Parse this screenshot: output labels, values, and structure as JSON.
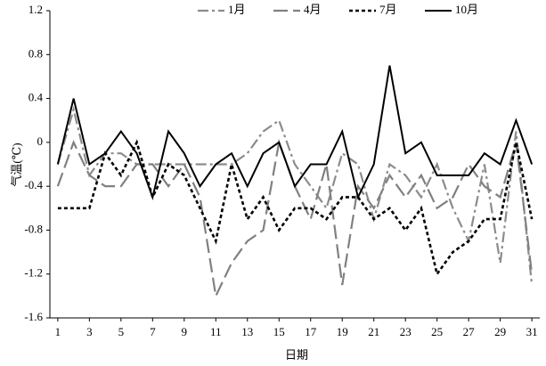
{
  "chart_data": {
    "type": "line",
    "legend": [
      "1月",
      "4月",
      "7月",
      "10月"
    ],
    "legend_position": "top",
    "x_label": "日期",
    "y_label": "气温(℃)",
    "x": [
      1,
      2,
      3,
      4,
      5,
      6,
      7,
      8,
      9,
      10,
      11,
      12,
      13,
      14,
      15,
      16,
      17,
      18,
      19,
      20,
      21,
      22,
      23,
      24,
      25,
      26,
      27,
      28,
      29,
      30,
      31
    ],
    "xlim": [
      0.5,
      31.5
    ],
    "xticks": [
      1,
      3,
      5,
      7,
      9,
      11,
      13,
      15,
      17,
      19,
      21,
      23,
      25,
      27,
      29,
      31
    ],
    "ylim": [
      -1.6,
      1.2
    ],
    "yticks": [
      -1.6,
      -1.2,
      -0.8,
      -0.4,
      0,
      0.4,
      0.8,
      1.2
    ],
    "series": [
      {
        "name": "1月",
        "color": "#8c8c8c",
        "dash": "dashdot",
        "values": [
          -0.2,
          0.3,
          -0.3,
          -0.1,
          -0.1,
          -0.2,
          -0.2,
          -0.2,
          -0.2,
          -0.2,
          -0.2,
          -0.2,
          -0.1,
          0.1,
          0.2,
          -0.2,
          -0.4,
          -0.6,
          -0.1,
          -0.2,
          -0.7,
          -0.2,
          -0.3,
          -0.5,
          -0.2,
          -0.6,
          -0.9,
          -0.2,
          -1.1,
          0.1,
          -1.3
        ]
      },
      {
        "name": "4月",
        "color": "#808080",
        "dash": "longdash",
        "values": [
          -0.4,
          0,
          -0.3,
          -0.4,
          -0.4,
          -0.2,
          -0.2,
          -0.4,
          -0.2,
          -0.5,
          -1.4,
          -1.1,
          -0.9,
          -0.8,
          0,
          -0.4,
          -0.7,
          -0.2,
          -1.3,
          -0.4,
          -0.6,
          -0.3,
          -0.5,
          -0.3,
          -0.6,
          -0.5,
          -0.2,
          -0.4,
          -0.5,
          0,
          -1.2
        ]
      },
      {
        "name": "7月",
        "color": "#000000",
        "dash": "dotted",
        "values": [
          -0.6,
          -0.6,
          -0.6,
          -0.1,
          -0.3,
          0,
          -0.5,
          -0.2,
          -0.3,
          -0.6,
          -0.9,
          -0.2,
          -0.7,
          -0.5,
          -0.8,
          -0.6,
          -0.6,
          -0.7,
          -0.5,
          -0.5,
          -0.7,
          -0.6,
          -0.8,
          -0.6,
          -1.2,
          -1.0,
          -0.9,
          -0.7,
          -0.7,
          0,
          -0.7
        ]
      },
      {
        "name": "10月",
        "color": "#000000",
        "dash": "solid",
        "values": [
          -0.2,
          0.4,
          -0.2,
          -0.1,
          0.1,
          -0.1,
          -0.5,
          0.1,
          -0.1,
          -0.4,
          -0.2,
          -0.1,
          -0.4,
          -0.1,
          0,
          -0.4,
          -0.2,
          -0.2,
          0.1,
          -0.5,
          -0.2,
          0.7,
          -0.1,
          0,
          -0.3,
          -0.3,
          -0.3,
          -0.1,
          -0.2,
          0.2,
          -0.2
        ]
      }
    ]
  }
}
